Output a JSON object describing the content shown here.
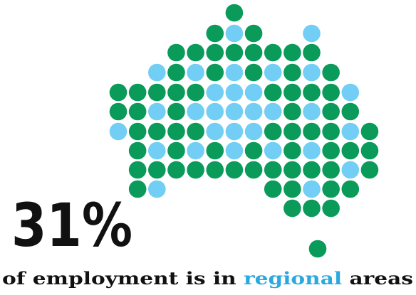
{
  "headline": {
    "figure": "31%",
    "before": "of employment is in ",
    "highlight": "regional",
    "after": " areas"
  }
}
